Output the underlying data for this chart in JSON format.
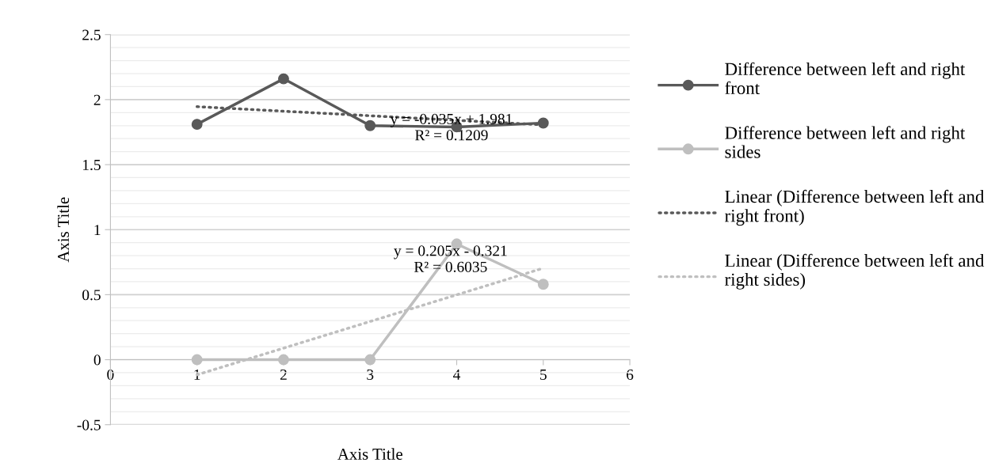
{
  "chart_data": {
    "type": "line",
    "xlabel": "Axis Title",
    "ylabel": "Axis Title",
    "x": [
      1,
      2,
      3,
      4,
      5
    ],
    "series": [
      {
        "name": "Difference between left and right front",
        "color": "#595959",
        "values": [
          1.81,
          2.16,
          1.8,
          1.79,
          1.82
        ],
        "marker": "circle",
        "line_style": "solid"
      },
      {
        "name": "Difference between left and right sides",
        "color": "#bfbfbf",
        "values": [
          0,
          0,
          0,
          0.89,
          0.58
        ],
        "marker": "circle",
        "line_style": "solid"
      },
      {
        "name": "Linear (Difference between left and right front)",
        "color": "#595959",
        "values": [
          1.946,
          1.911,
          1.876,
          1.841,
          1.806
        ],
        "marker": "none",
        "line_style": "dotted"
      },
      {
        "name": "Linear (Difference between left and right sides)",
        "color": "#bfbfbf",
        "values": [
          -0.116,
          0.089,
          0.294,
          0.499,
          0.704
        ],
        "marker": "none",
        "line_style": "dotted"
      }
    ],
    "annotations": [
      {
        "text": "y = -0.035x + 1.981\nR² = 0.1209",
        "x": 3.94,
        "y": 1.843
      },
      {
        "text": "y = 0.205x - 0.321\nR² = 0.6035",
        "x": 3.93,
        "y": 0.83
      }
    ],
    "xlim": [
      0,
      6
    ],
    "xticks": [
      0,
      1,
      2,
      3,
      4,
      5,
      6
    ],
    "ylim": [
      -0.5,
      2.5
    ],
    "yticks": [
      -0.5,
      0,
      0.5,
      1,
      1.5,
      2,
      2.5
    ],
    "grid": "y",
    "legend": "right"
  }
}
